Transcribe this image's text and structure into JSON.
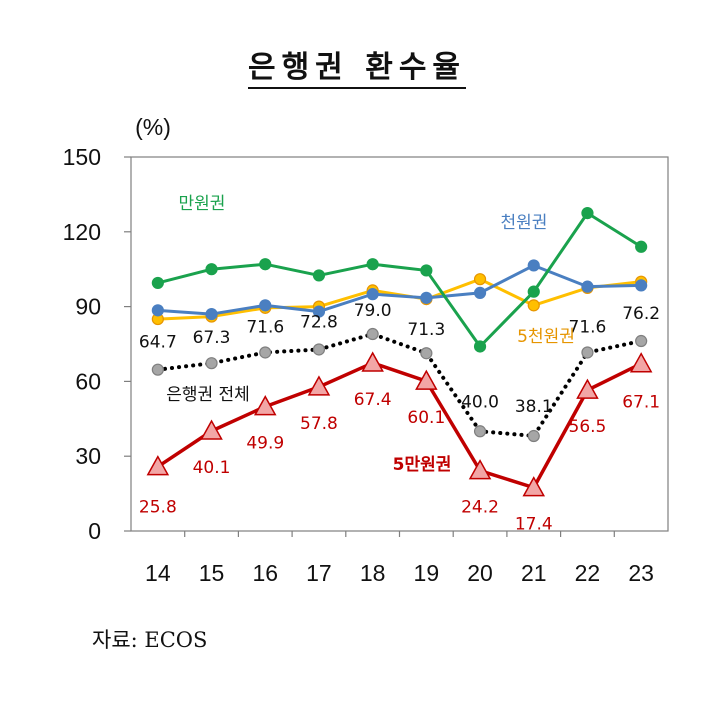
{
  "title": "은행권 환수율",
  "source": "자료:  ECOS",
  "chart_data": {
    "type": "line",
    "unit": "(%)",
    "x": [
      "14",
      "15",
      "16",
      "17",
      "18",
      "19",
      "20",
      "21",
      "22",
      "23"
    ],
    "ylim": [
      0,
      150
    ],
    "yticks": [
      "0",
      "30",
      "60",
      "90",
      "120",
      "150"
    ],
    "series": [
      {
        "name": "만원권",
        "color": "#1aa24d",
        "marker": "circle",
        "values": [
          99.5,
          105,
          107,
          102.5,
          107,
          104.5,
          74,
          96,
          127.5,
          114
        ]
      },
      {
        "name": "천원권",
        "color": "#4a7fc1",
        "marker": "circle",
        "values": [
          88.5,
          87,
          90.5,
          88,
          95,
          93.5,
          95.5,
          106.5,
          98,
          98.5
        ]
      },
      {
        "name": "5천원권",
        "color": "#ffbf00",
        "marker": "circle",
        "values": [
          85,
          86,
          89.5,
          90,
          96.5,
          93,
          101,
          90.5,
          97.5,
          100
        ]
      },
      {
        "name": "은행권 전체",
        "color": "#000000",
        "marker": "circle",
        "dotted": true,
        "values": [
          64.7,
          67.3,
          71.6,
          72.8,
          79.0,
          71.3,
          40.0,
          38.1,
          71.6,
          76.2
        ],
        "labels": [
          "64.7",
          "67.3",
          "71.6",
          "72.8",
          "79.0",
          "71.3",
          "40.0",
          "38.1",
          "71.6",
          "76.2"
        ]
      },
      {
        "name": "5만원권",
        "color": "#c00000",
        "marker": "triangle",
        "values": [
          25.8,
          40.1,
          49.9,
          57.8,
          67.4,
          60.1,
          24.2,
          17.4,
          56.5,
          67.1
        ],
        "labels": [
          "25.8",
          "40.1",
          "49.9",
          "57.8",
          "67.4",
          "60.1",
          "24.2",
          "17.4",
          "56.5",
          "67.1"
        ]
      }
    ]
  }
}
